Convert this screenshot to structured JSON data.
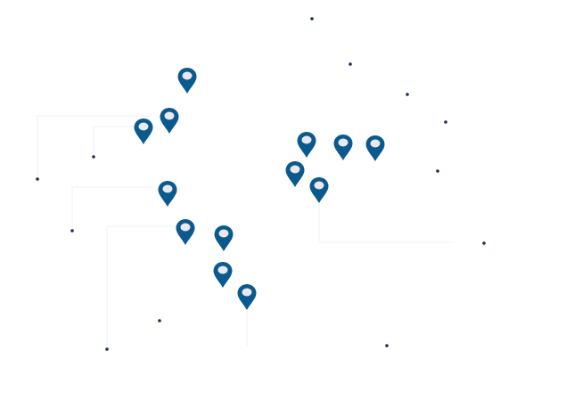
{
  "colors": {
    "pin": "#0a5a8f",
    "pin_hole": "#ece8ee",
    "dot": "#1b2f5a",
    "connector": "#eef1f4"
  },
  "pin_icon": "map-marker-icon",
  "dot_icon": "point-icon"
}
